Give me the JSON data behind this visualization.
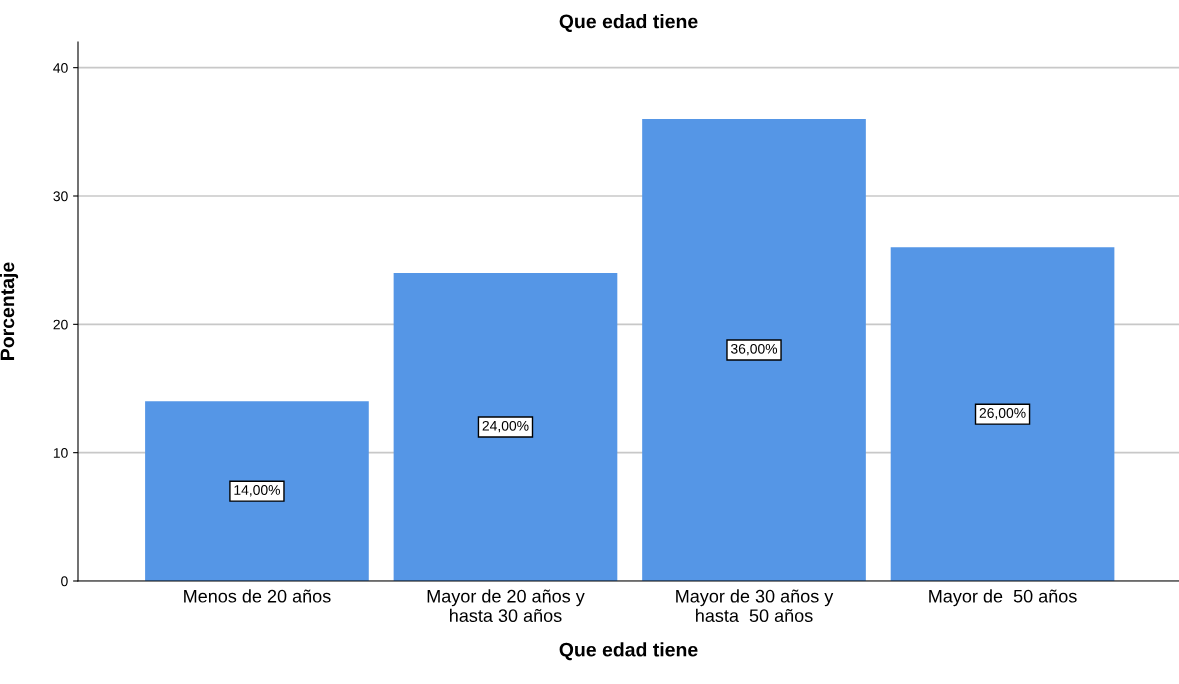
{
  "chart_data": {
    "type": "bar",
    "title": "Que edad tiene",
    "xlabel": "Que edad tiene",
    "ylabel": "Porcentaje",
    "categories": [
      "Menos de 20 años",
      "Mayor de 20 años y\nhasta 30 años",
      "Mayor de 30 años y\nhasta  50 años",
      "Mayor de  50 años"
    ],
    "values": [
      14,
      24,
      36,
      26
    ],
    "value_labels": [
      "14,00%",
      "24,00%",
      "36,00%",
      "26,00%"
    ],
    "color": "#5596e6",
    "ylim": [
      0,
      42
    ],
    "yticks": [
      0,
      10,
      20,
      30,
      40
    ],
    "grid": "y"
  }
}
